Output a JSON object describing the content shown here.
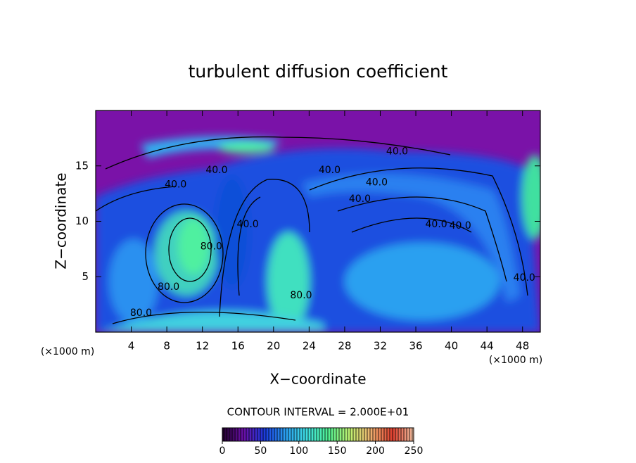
{
  "chart_data": {
    "type": "contour",
    "title": "turbulent diffusion coefficient",
    "x_label": "X−coordinate",
    "y_label": "Z−coordinate",
    "x_unit": "(×1000 m)",
    "x_unit_right": "(×1000 m)",
    "contour_interval": "CONTOUR INTERVAL = 2.000E+01",
    "xlim": [
      0,
      50
    ],
    "ylim": [
      0,
      20
    ],
    "xticks": [
      4,
      8,
      12,
      16,
      20,
      24,
      28,
      32,
      36,
      40,
      44,
      48
    ],
    "yticks": [
      5,
      10,
      15
    ],
    "contour_labels": [
      {
        "label": "40.0",
        "x": 33.9,
        "y": 16.3
      },
      {
        "label": "40.0",
        "x": 26.3,
        "y": 14.6
      },
      {
        "label": "40.0",
        "x": 9.0,
        "y": 13.3
      },
      {
        "label": "40.0",
        "x": 31.6,
        "y": 13.5
      },
      {
        "label": "40.0",
        "x": 29.7,
        "y": 12.0
      },
      {
        "label": "40.0",
        "x": 13.6,
        "y": 14.6
      },
      {
        "label": "40.0",
        "x": 17.1,
        "y": 9.7
      },
      {
        "label": "40.0",
        "x": 38.3,
        "y": 9.7
      },
      {
        "label": "40.0",
        "x": 41.0,
        "y": 9.6
      },
      {
        "label": "40.0",
        "x": 48.2,
        "y": 4.9
      },
      {
        "label": "80.0",
        "x": 13.0,
        "y": 7.7
      },
      {
        "label": "80.0",
        "x": 8.2,
        "y": 4.05
      },
      {
        "label": "80.0",
        "x": 5.1,
        "y": 1.7
      },
      {
        "label": "80.0",
        "x": 23.1,
        "y": 3.3
      }
    ],
    "colorbar": {
      "clim": [
        0,
        250
      ],
      "ticks": [
        0,
        50,
        100,
        150,
        200,
        250
      ],
      "colormap": [
        "#20002a",
        "#6a0fa8",
        "#1a3ce0",
        "#2aa0f0",
        "#40e0e0",
        "#50f090",
        "#c0f070",
        "#f0b070",
        "#e04030",
        "#f0c0a0"
      ]
    }
  }
}
